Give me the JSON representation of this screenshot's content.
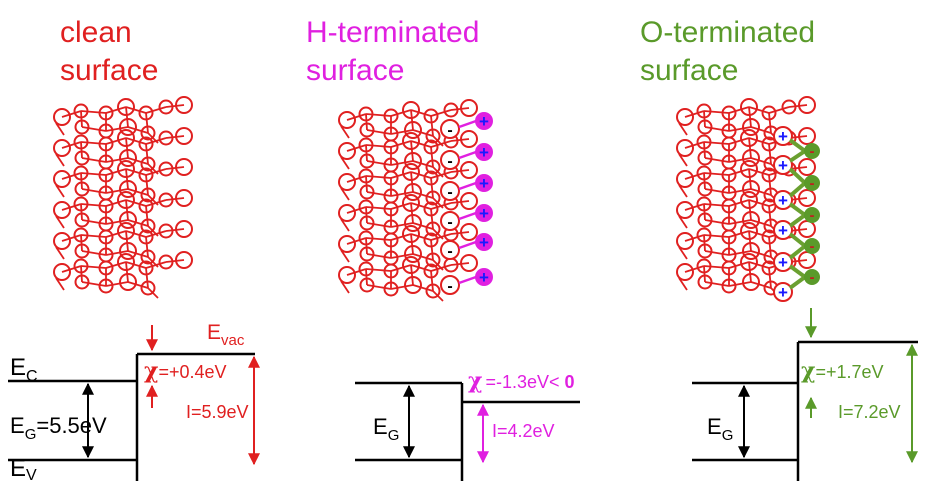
{
  "panels": {
    "clean": {
      "title_line1": "clean",
      "title_line2": "surface",
      "color": "#e02020"
    },
    "h_terminated": {
      "title_line1": "H-terminated",
      "title_line2": "surface",
      "color": "#e020e0"
    },
    "o_terminated": {
      "title_line1": "O-terminated",
      "title_line2": "surface",
      "color": "#5a9a2a"
    }
  },
  "band_clean": {
    "ec_main": "E",
    "ec_sub": "C",
    "ev_main": "E",
    "ev_sub": "V",
    "eg_main": "E",
    "eg_sub": "G",
    "eg_value": "=5.5eV",
    "evac_main": "E",
    "evac_sub": "vac",
    "chi_symbol": "χ",
    "chi_value": "=+0.4eV",
    "ionization": "I=5.9eV"
  },
  "band_h": {
    "eg_main": "E",
    "eg_sub": "G",
    "chi_symbol": "χ",
    "chi_value": "=-1.3eV< ",
    "chi_zero": "0",
    "ionization": "I=4.2eV"
  },
  "band_o": {
    "eg_main": "E",
    "eg_sub": "G",
    "chi_symbol": "χ",
    "chi_value": "=+1.7eV",
    "ionization": "I=7.2eV"
  },
  "charges": {
    "plus": "+",
    "minus": "-"
  },
  "colors": {
    "lattice": "#e02020",
    "hydrogen": "#e020e0",
    "oxygen": "#5a9a2a",
    "oxygen_bond": "#6aa030",
    "plus_sign": "#1a1aff",
    "black": "#000000"
  }
}
